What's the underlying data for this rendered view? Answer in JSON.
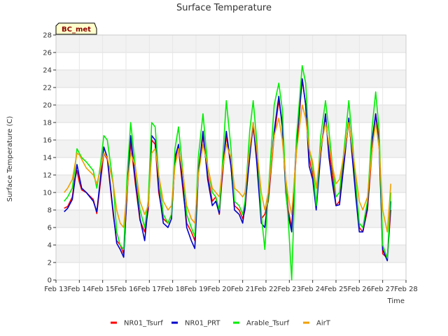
{
  "chart_data": {
    "type": "line",
    "title": "Surface Temperature",
    "xlabel": "Time",
    "ylabel": "Surface Temperature (C)",
    "badge": "BC_met",
    "xlim": [
      13,
      28
    ],
    "ylim": [
      0,
      28
    ],
    "x_ticks": [
      13,
      14,
      15,
      16,
      17,
      18,
      19,
      20,
      21,
      22,
      23,
      24,
      25,
      26,
      27,
      28
    ],
    "x_tick_labels": [
      "Feb 13",
      "Feb 14",
      "Feb 15",
      "Feb 16",
      "Feb 17",
      "Feb 18",
      "Feb 19",
      "Feb 20",
      "Feb 21",
      "Feb 22",
      "Feb 23",
      "Feb 24",
      "Feb 25",
      "Feb 26",
      "Feb 27",
      "Feb 28"
    ],
    "y_ticks": [
      0,
      2,
      4,
      6,
      8,
      10,
      12,
      14,
      16,
      18,
      20,
      22,
      24,
      26,
      28
    ],
    "y_tick_labels": [
      "0",
      "2",
      "4",
      "6",
      "8",
      "10",
      "12",
      "14",
      "16",
      "18",
      "20",
      "22",
      "24",
      "26",
      "28"
    ],
    "legend_position": "bottom",
    "background_bands": "alternating light grey between y-grid lines",
    "series": [
      {
        "name": "NR01_Tsurf",
        "color": "#ff0000",
        "x": [
          13.35,
          13.5,
          13.7,
          13.8,
          13.9,
          14.0,
          14.1,
          14.3,
          14.6,
          14.75,
          14.9,
          15.05,
          15.2,
          15.45,
          15.6,
          15.75,
          15.9,
          16.05,
          16.2,
          16.4,
          16.6,
          16.8,
          16.95,
          17.1,
          17.25,
          17.4,
          17.6,
          17.8,
          17.95,
          18.1,
          18.25,
          18.45,
          18.6,
          18.8,
          18.95,
          19.1,
          19.3,
          19.5,
          19.7,
          19.85,
          20.0,
          20.1,
          20.3,
          20.5,
          20.65,
          20.85,
          21.0,
          21.1,
          21.3,
          21.45,
          21.6,
          21.8,
          21.95,
          22.1,
          22.35,
          22.55,
          22.7,
          22.85,
          22.95,
          23.1,
          23.3,
          23.55,
          23.7,
          23.85,
          24.0,
          24.15,
          24.35,
          24.55,
          24.7,
          24.85,
          25.0,
          25.15,
          25.35,
          25.55,
          25.7,
          25.85,
          26.0,
          26.15,
          26.35,
          26.55,
          26.7,
          26.85,
          27.0,
          27.2,
          27.35
        ],
        "y": [
          8.2,
          8.4,
          9.5,
          11.5,
          12.5,
          11.2,
          10.3,
          10.0,
          9.2,
          7.6,
          11.0,
          14.5,
          13.8,
          7.5,
          4.5,
          4.0,
          3.0,
          10.0,
          15.8,
          11.0,
          6.8,
          5.5,
          8.0,
          16.0,
          15.5,
          10.0,
          7.0,
          6.5,
          7.5,
          13.5,
          15.0,
          10.0,
          6.5,
          5.5,
          4.5,
          12.5,
          16.5,
          12.0,
          9.0,
          9.5,
          7.5,
          11.0,
          16.5,
          13.0,
          8.5,
          8.0,
          7.0,
          8.0,
          14.5,
          17.5,
          14.0,
          7.0,
          7.5,
          9.0,
          16.5,
          20.5,
          18.0,
          11.0,
          8.0,
          6.0,
          14.5,
          23.0,
          20.0,
          14.0,
          12.0,
          8.5,
          15.0,
          18.5,
          15.0,
          12.0,
          8.5,
          9.0,
          14.0,
          18.0,
          14.5,
          10.0,
          6.0,
          5.5,
          8.0,
          15.0,
          19.0,
          16.0,
          3.0,
          2.5,
          8.0
        ]
      },
      {
        "name": "NR01_PRT",
        "color": "#0000cc",
        "x": [
          13.35,
          13.5,
          13.7,
          13.8,
          13.9,
          14.0,
          14.1,
          14.3,
          14.6,
          14.75,
          14.9,
          15.05,
          15.2,
          15.45,
          15.6,
          15.75,
          15.9,
          16.05,
          16.2,
          16.4,
          16.6,
          16.8,
          16.95,
          17.1,
          17.25,
          17.4,
          17.6,
          17.8,
          17.95,
          18.1,
          18.25,
          18.45,
          18.6,
          18.8,
          18.95,
          19.1,
          19.3,
          19.5,
          19.7,
          19.85,
          20.0,
          20.1,
          20.3,
          20.5,
          20.65,
          20.85,
          21.0,
          21.1,
          21.3,
          21.45,
          21.6,
          21.8,
          21.95,
          22.1,
          22.35,
          22.55,
          22.7,
          22.85,
          22.95,
          23.1,
          23.3,
          23.55,
          23.7,
          23.85,
          24.0,
          24.15,
          24.35,
          24.55,
          24.7,
          24.85,
          25.0,
          25.15,
          25.35,
          25.55,
          25.7,
          25.85,
          26.0,
          26.15,
          26.35,
          26.55,
          26.7,
          26.85,
          27.0,
          27.2,
          27.35
        ],
        "y": [
          7.8,
          8.2,
          9.2,
          11.2,
          13.2,
          11.8,
          10.5,
          10.0,
          9.0,
          7.8,
          11.5,
          15.2,
          14.0,
          7.8,
          4.2,
          3.5,
          2.6,
          10.5,
          16.5,
          11.5,
          7.0,
          4.5,
          8.5,
          16.5,
          16.0,
          10.5,
          6.5,
          6.0,
          7.0,
          14.0,
          15.5,
          10.5,
          6.0,
          4.5,
          3.6,
          12.0,
          17.0,
          11.5,
          8.5,
          9.0,
          7.6,
          11.5,
          17.0,
          13.0,
          8.0,
          7.5,
          6.5,
          8.5,
          14.0,
          18.0,
          13.5,
          6.5,
          6.0,
          9.5,
          17.0,
          21.0,
          17.5,
          10.0,
          7.5,
          5.5,
          15.5,
          23.0,
          20.0,
          13.0,
          11.5,
          8.0,
          14.5,
          19.0,
          14.0,
          11.0,
          8.5,
          8.6,
          13.5,
          18.5,
          14.0,
          9.5,
          5.5,
          5.5,
          8.5,
          16.0,
          19.0,
          15.0,
          3.5,
          2.2,
          9.0
        ]
      },
      {
        "name": "Arable_Tsurf",
        "color": "#00ee00",
        "x": [
          13.35,
          13.5,
          13.7,
          13.8,
          13.9,
          14.0,
          14.1,
          14.3,
          14.6,
          14.75,
          14.9,
          15.05,
          15.2,
          15.45,
          15.6,
          15.75,
          15.9,
          16.05,
          16.2,
          16.4,
          16.6,
          16.8,
          16.95,
          17.1,
          17.25,
          17.4,
          17.6,
          17.8,
          17.95,
          18.1,
          18.25,
          18.45,
          18.6,
          18.8,
          18.95,
          19.1,
          19.3,
          19.5,
          19.7,
          19.85,
          20.0,
          20.1,
          20.3,
          20.5,
          20.65,
          20.85,
          21.0,
          21.1,
          21.3,
          21.45,
          21.6,
          21.8,
          21.95,
          22.1,
          22.35,
          22.55,
          22.7,
          22.85,
          22.95,
          23.1,
          23.3,
          23.55,
          23.7,
          23.85,
          24.0,
          24.15,
          24.35,
          24.55,
          24.7,
          24.85,
          25.0,
          25.15,
          25.35,
          25.55,
          25.7,
          25.85,
          26.0,
          26.15,
          26.35,
          26.55,
          26.7,
          26.85,
          27.0,
          27.2,
          27.35
        ],
        "y": [
          9.0,
          9.5,
          10.5,
          12.5,
          15.0,
          14.5,
          14.0,
          13.5,
          12.5,
          10.5,
          13.0,
          16.5,
          16.0,
          11.0,
          5.5,
          4.0,
          3.5,
          12.0,
          18.0,
          13.0,
          8.0,
          6.0,
          9.0,
          18.0,
          17.5,
          12.0,
          7.5,
          6.5,
          7.5,
          15.0,
          17.5,
          12.0,
          7.5,
          6.0,
          5.0,
          14.0,
          19.0,
          13.0,
          10.0,
          9.5,
          8.0,
          12.0,
          20.5,
          15.0,
          9.0,
          8.5,
          7.5,
          9.0,
          17.0,
          20.5,
          16.0,
          7.5,
          3.5,
          10.0,
          20.0,
          22.5,
          19.5,
          10.5,
          7.0,
          0.0,
          16.0,
          24.5,
          22.5,
          15.0,
          13.0,
          8.5,
          16.5,
          20.5,
          17.0,
          13.0,
          9.5,
          10.0,
          15.0,
          20.5,
          16.0,
          11.0,
          6.5,
          6.0,
          9.0,
          17.5,
          21.5,
          17.0,
          4.0,
          2.5,
          10.0
        ]
      },
      {
        "name": "AirT",
        "color": "#f0a000",
        "x": [
          13.35,
          13.5,
          13.7,
          13.8,
          13.9,
          14.0,
          14.1,
          14.3,
          14.6,
          14.75,
          14.9,
          15.05,
          15.2,
          15.45,
          15.6,
          15.75,
          15.9,
          16.05,
          16.2,
          16.4,
          16.6,
          16.8,
          16.95,
          17.1,
          17.25,
          17.4,
          17.6,
          17.8,
          17.95,
          18.1,
          18.25,
          18.45,
          18.6,
          18.8,
          18.95,
          19.1,
          19.3,
          19.5,
          19.7,
          19.85,
          20.0,
          20.1,
          20.3,
          20.5,
          20.65,
          20.85,
          21.0,
          21.1,
          21.3,
          21.45,
          21.6,
          21.8,
          21.95,
          22.1,
          22.35,
          22.55,
          22.7,
          22.85,
          22.95,
          23.1,
          23.3,
          23.55,
          23.7,
          23.85,
          24.0,
          24.15,
          24.35,
          24.55,
          24.7,
          24.85,
          25.0,
          25.15,
          25.35,
          25.55,
          25.7,
          25.85,
          26.0,
          26.15,
          26.35,
          26.55,
          26.7,
          26.85,
          27.0,
          27.2,
          27.35
        ],
        "y": [
          10.0,
          10.5,
          11.5,
          13.0,
          14.5,
          14.3,
          13.8,
          12.8,
          12.0,
          11.0,
          12.5,
          14.5,
          14.0,
          11.0,
          8.0,
          6.5,
          6.0,
          10.5,
          14.5,
          13.0,
          9.0,
          7.5,
          8.5,
          14.5,
          15.0,
          12.0,
          9.0,
          8.0,
          8.5,
          13.0,
          15.0,
          12.0,
          8.5,
          7.0,
          6.5,
          12.0,
          15.5,
          13.0,
          10.5,
          10.0,
          9.5,
          12.0,
          15.5,
          14.0,
          10.5,
          10.0,
          9.5,
          10.0,
          15.0,
          18.0,
          15.0,
          10.0,
          8.0,
          10.0,
          16.5,
          18.5,
          16.0,
          11.5,
          9.5,
          7.5,
          14.5,
          20.0,
          18.5,
          15.0,
          13.5,
          10.5,
          15.0,
          18.0,
          15.5,
          13.0,
          11.0,
          11.5,
          14.5,
          18.0,
          15.0,
          12.0,
          9.0,
          8.0,
          9.5,
          15.0,
          18.0,
          15.0,
          8.0,
          5.5,
          11.0
        ]
      }
    ]
  }
}
